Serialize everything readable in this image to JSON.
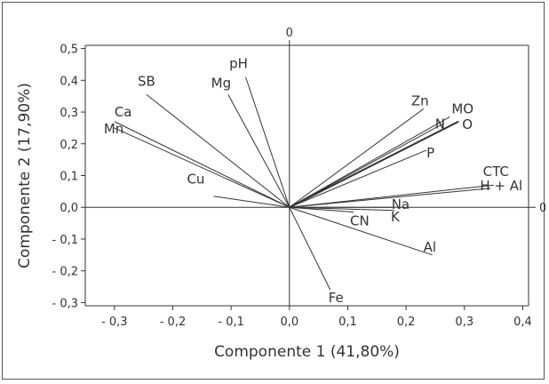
{
  "chart_data": {
    "type": "scatter",
    "subtype": "pca-biplot-loadings",
    "title": "",
    "xlabel": "Componente 1 (41,80%)",
    "ylabel": "Componente 2 (17,90%)",
    "xlim": [
      -0.35,
      0.41
    ],
    "ylim": [
      -0.31,
      0.51
    ],
    "x_ticks": [
      -0.3,
      -0.2,
      -0.1,
      0.0,
      0.1,
      0.2,
      0.3,
      0.4
    ],
    "x_tick_labels": [
      "- 0,3",
      "- 0,2",
      "- 0,1",
      "0,0",
      "0,1",
      "0,2",
      "0,3",
      "0,4"
    ],
    "y_ticks": [
      -0.3,
      -0.2,
      -0.1,
      0.0,
      0.1,
      0.2,
      0.3,
      0.4,
      0.5
    ],
    "y_tick_labels": [
      "- 0,3",
      "- 0,2",
      "- 0,1",
      "0,0",
      "0,1",
      "0,2",
      "0,3",
      "0,4",
      "0,5"
    ],
    "reference_line_labels": {
      "vertical": "0",
      "horizontal": "0"
    },
    "grid": false,
    "vectors": [
      {
        "name": "pH",
        "x": -0.075,
        "y": 0.41
      },
      {
        "name": "Mg",
        "x": -0.105,
        "y": 0.355
      },
      {
        "name": "SB",
        "x": -0.245,
        "y": 0.355
      },
      {
        "name": "Ca",
        "x": -0.3,
        "y": 0.27
      },
      {
        "name": "Mn",
        "x": -0.3,
        "y": 0.25
      },
      {
        "name": "Cu",
        "x": -0.13,
        "y": 0.035
      },
      {
        "name": "Fe",
        "x": 0.07,
        "y": -0.26
      },
      {
        "name": "Zn",
        "x": 0.23,
        "y": 0.31
      },
      {
        "name": "MO",
        "x": 0.275,
        "y": 0.285
      },
      {
        "name": "N",
        "x": 0.265,
        "y": 0.265
      },
      {
        "name": "O",
        "x": 0.29,
        "y": 0.27
      },
      {
        "name": "P",
        "x": 0.235,
        "y": 0.18
      },
      {
        "name": "CTC",
        "x": 0.35,
        "y": 0.07
      },
      {
        "name": "H + Al",
        "x": 0.345,
        "y": 0.06
      },
      {
        "name": "Na",
        "x": 0.175,
        "y": 0.0
      },
      {
        "name": "K",
        "x": 0.18,
        "y": -0.01
      },
      {
        "name": "CN",
        "x": 0.11,
        "y": -0.015
      },
      {
        "name": "Al",
        "x": 0.245,
        "y": -0.15
      }
    ]
  }
}
